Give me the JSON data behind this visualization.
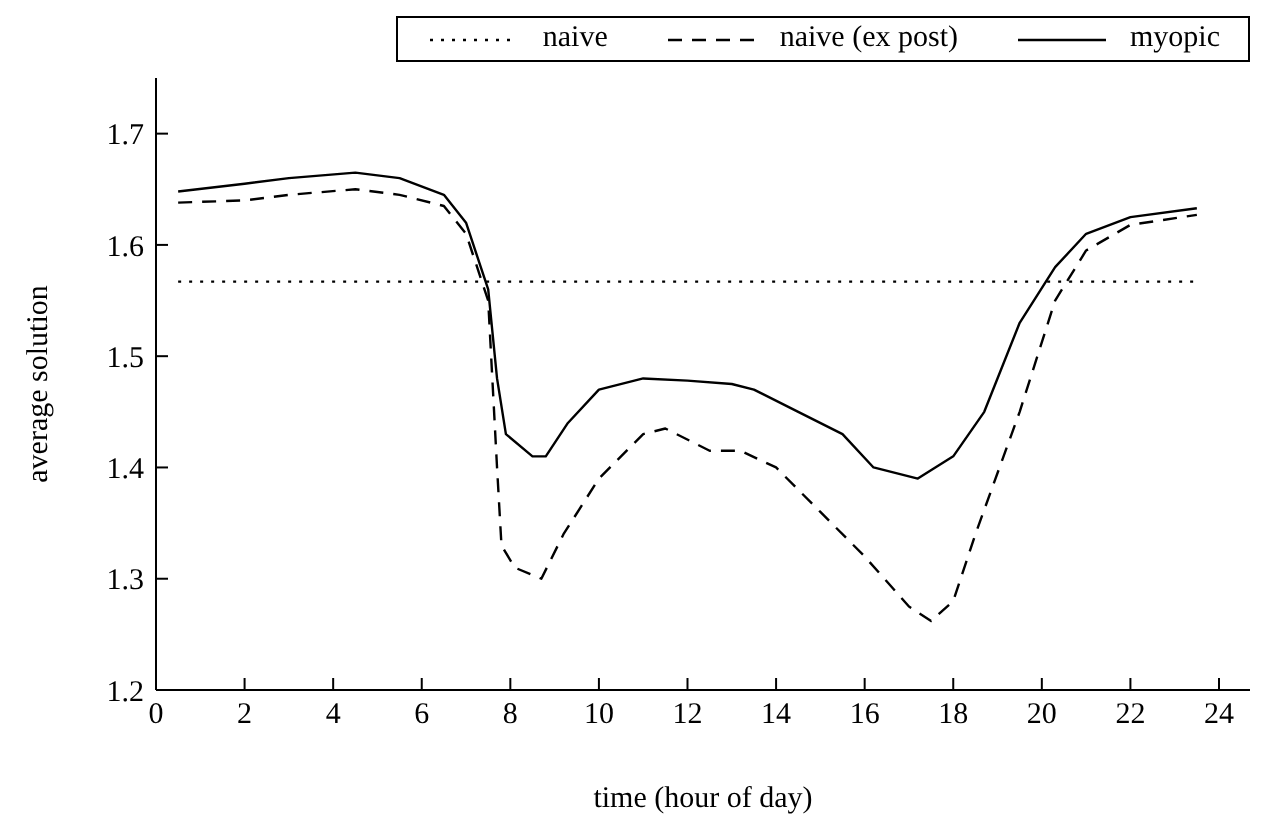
{
  "chart_data": {
    "type": "line",
    "xlabel": "time (hour of day)",
    "ylabel": "average solution",
    "xlim": [
      0,
      24.7
    ],
    "xticks": [
      0,
      2,
      4,
      6,
      8,
      10,
      12,
      14,
      16,
      18,
      20,
      22,
      24
    ],
    "ylim": [
      1.2,
      1.75
    ],
    "yticks": [
      1.2,
      1.3,
      1.4,
      1.5,
      1.6,
      1.7
    ],
    "grid": false,
    "legend": "top right",
    "marker": "none",
    "series": [
      {
        "name": "naive",
        "color": "#000000",
        "line_style": "dotted",
        "x": [
          0.5,
          23.5
        ],
        "values": [
          1.567,
          1.567
        ]
      },
      {
        "name": "naive (ex post)",
        "color": "#000000",
        "line_style": "dashed",
        "x": [
          0.5,
          2,
          3,
          4.5,
          5.5,
          6.5,
          7,
          7.5,
          7.7,
          7.8,
          8.1,
          8.7,
          9.2,
          10,
          11,
          11.5,
          12.5,
          13.2,
          14,
          15,
          16,
          17,
          17.5,
          18,
          18.5,
          19.5,
          20.3,
          21,
          22,
          23.5
        ],
        "values": [
          1.638,
          1.64,
          1.645,
          1.65,
          1.645,
          1.635,
          1.61,
          1.55,
          1.4,
          1.33,
          1.31,
          1.3,
          1.34,
          1.39,
          1.43,
          1.435,
          1.415,
          1.415,
          1.4,
          1.36,
          1.32,
          1.275,
          1.262,
          1.28,
          1.34,
          1.45,
          1.55,
          1.595,
          1.618,
          1.627
        ]
      },
      {
        "name": "myopic",
        "color": "#000000",
        "line_style": "solid",
        "x": [
          0.5,
          2,
          3,
          4.5,
          5.5,
          6.5,
          7,
          7.5,
          7.7,
          7.9,
          8.5,
          8.8,
          9.3,
          10,
          11,
          12,
          13,
          13.5,
          14.5,
          15.5,
          16.2,
          17.2,
          18,
          18.7,
          19.5,
          20.3,
          21,
          22,
          23.5
        ],
        "values": [
          1.648,
          1.655,
          1.66,
          1.665,
          1.66,
          1.645,
          1.62,
          1.56,
          1.48,
          1.43,
          1.41,
          1.41,
          1.44,
          1.47,
          1.48,
          1.478,
          1.475,
          1.47,
          1.45,
          1.43,
          1.4,
          1.39,
          1.41,
          1.45,
          1.53,
          1.58,
          1.61,
          1.625,
          1.633
        ]
      }
    ]
  }
}
